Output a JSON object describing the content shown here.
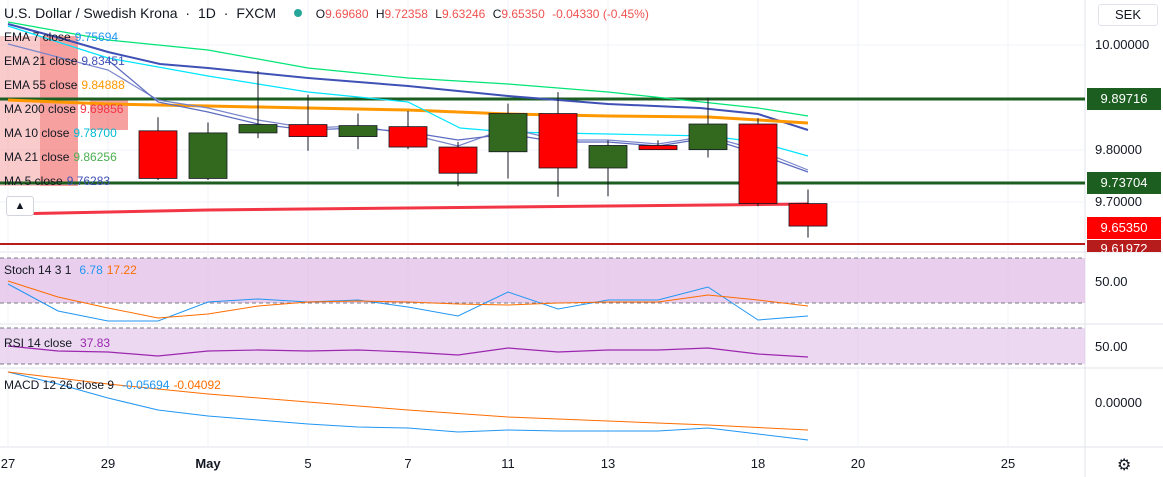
{
  "header": {
    "symbol_title": "U.S. Dollar / Swedish Krona",
    "interval": "1D",
    "exchange": "FXCM",
    "status_dot_color": "#26a69a",
    "ohlc": {
      "open_label": "O",
      "open": "9.69680",
      "high_label": "H",
      "high": "9.72358",
      "low_label": "L",
      "low": "9.63246",
      "close_label": "C",
      "close": "9.65350",
      "change": "-0.04330 (-0.45%)"
    }
  },
  "currency_button": "SEK",
  "indicators": [
    {
      "name": "EMA 7 close",
      "value": "9.75694",
      "color": "#2196f3"
    },
    {
      "name": "EMA 21 close",
      "value": "9.83451",
      "color": "#3f51b5"
    },
    {
      "name": "EMA 55 close",
      "value": "9.84888",
      "color": "#ff9800"
    },
    {
      "name": "MA 200 close",
      "value": "9.69856",
      "color": "#f23645"
    },
    {
      "name": "MA 10 close",
      "value": "9.78700",
      "color": "#00bcd4"
    },
    {
      "name": "MA 21 close",
      "value": "9.86256",
      "color": "#4caf50"
    },
    {
      "name": "MA 5 close",
      "value": "9.76283",
      "color": "#3f51b5"
    }
  ],
  "price_axis": {
    "ticks": [
      "10.00000",
      "9.80000",
      "9.70000"
    ],
    "tags": [
      {
        "label": "9.89716",
        "color": "#1b5e20",
        "value": 9.89716
      },
      {
        "label": "9.73704",
        "color": "#1b5e20",
        "value": 9.73704
      },
      {
        "label": "9.65350",
        "color": "#ff0000",
        "value": 9.6535
      },
      {
        "label": "9.61972",
        "color": "#b71c1c",
        "value": 9.61972
      }
    ]
  },
  "stoch": {
    "label": "Stoch 14 3 1",
    "k": "6.78",
    "d": "17.22",
    "k_color": "#2196f3",
    "d_color": "#ff6d00",
    "axis_tick": "50.00"
  },
  "rsi": {
    "label": "RSI 14 close",
    "value": "37.83",
    "color": "#9c27b0",
    "axis_tick": "50.00"
  },
  "macd": {
    "label": "MACD 12 26 close 9",
    "macd": "-0.05694",
    "signal": "-0.04092",
    "macd_color": "#2196f3",
    "signal_color": "#ff6d00",
    "axis_tick": "0.00000"
  },
  "date_axis": [
    "27",
    "29",
    "May",
    "5",
    "7",
    "11",
    "13",
    "18",
    "20",
    "25"
  ],
  "chart_data": {
    "type": "candlestick",
    "dates": [
      "Apr 30",
      "May 1",
      "May 4",
      "May 5",
      "May 6",
      "May 7",
      "May 8",
      "May 11",
      "May 12",
      "May 13",
      "May 14",
      "May 15",
      "May 18",
      "May 19"
    ],
    "candles": [
      {
        "o": 9.836,
        "h": 9.862,
        "l": 9.742,
        "c": 9.745
      },
      {
        "o": 9.745,
        "h": 9.852,
        "l": 9.742,
        "c": 9.832
      },
      {
        "o": 9.832,
        "h": 9.95,
        "l": 9.822,
        "c": 9.848
      },
      {
        "o": 9.848,
        "h": 9.905,
        "l": 9.798,
        "c": 9.825
      },
      {
        "o": 9.825,
        "h": 9.869,
        "l": 9.801,
        "c": 9.846
      },
      {
        "o": 9.844,
        "h": 9.874,
        "l": 9.801,
        "c": 9.805
      },
      {
        "o": 9.805,
        "h": 9.815,
        "l": 9.73,
        "c": 9.755
      },
      {
        "o": 9.796,
        "h": 9.888,
        "l": 9.745,
        "c": 9.869
      },
      {
        "o": 9.869,
        "h": 9.91,
        "l": 9.71,
        "c": 9.765
      },
      {
        "o": 9.765,
        "h": 9.818,
        "l": 9.711,
        "c": 9.808
      },
      {
        "o": 9.808,
        "h": 9.818,
        "l": 9.8,
        "c": 9.8
      },
      {
        "o": 9.8,
        "h": 9.899,
        "l": 9.785,
        "c": 9.849
      },
      {
        "o": 9.849,
        "h": 9.86,
        "l": 9.692,
        "c": 9.697
      },
      {
        "o": 9.697,
        "h": 9.724,
        "l": 9.632,
        "c": 9.654
      }
    ],
    "horizontal_levels": [
      9.89716,
      9.73704,
      9.61972
    ],
    "ylim": [
      9.61,
      10.02
    ]
  }
}
